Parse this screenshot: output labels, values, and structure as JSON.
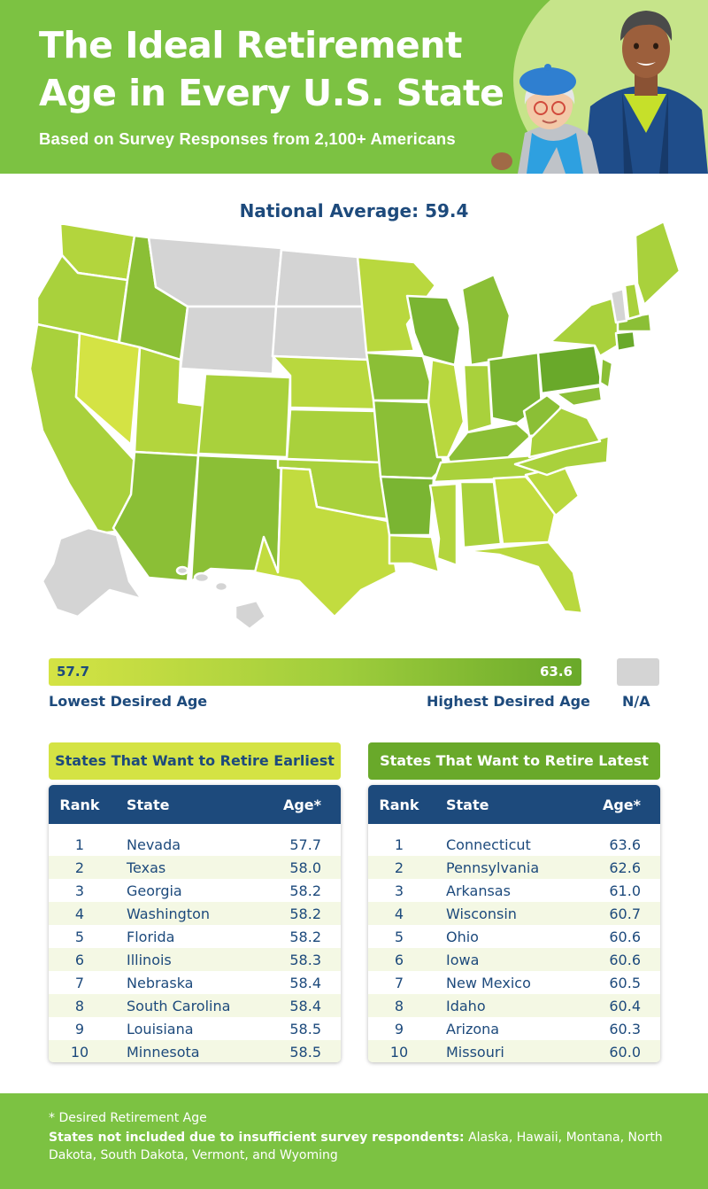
{
  "header": {
    "title": "The Ideal Retirement Age in Every U.S. State",
    "subtitle": "Based on Survey Responses from 2,100+ Americans"
  },
  "map": {
    "national_average": "National Average: 59.4",
    "legend": {
      "min_value": "57.7",
      "max_value": "63.6",
      "min_label": "Lowest Desired Age",
      "max_label": "Highest Desired Age",
      "na_label": "N/A"
    },
    "colors": {
      "low": "#d4e344",
      "high": "#69a92a",
      "na": "#d4d4d4"
    }
  },
  "tables": {
    "earliest": {
      "title": "States That Want to Retire Earliest",
      "headers": {
        "rank": "Rank",
        "state": "State",
        "age": "Age*"
      },
      "rows": [
        {
          "rank": "1",
          "state": "Nevada",
          "age": "57.7"
        },
        {
          "rank": "2",
          "state": "Texas",
          "age": "58.0"
        },
        {
          "rank": "3",
          "state": "Georgia",
          "age": "58.2"
        },
        {
          "rank": "4",
          "state": "Washington",
          "age": "58.2"
        },
        {
          "rank": "5",
          "state": "Florida",
          "age": "58.2"
        },
        {
          "rank": "6",
          "state": "Illinois",
          "age": "58.3"
        },
        {
          "rank": "7",
          "state": "Nebraska",
          "age": "58.4"
        },
        {
          "rank": "8",
          "state": "South Carolina",
          "age": "58.4"
        },
        {
          "rank": "9",
          "state": "Louisiana",
          "age": "58.5"
        },
        {
          "rank": "10",
          "state": "Minnesota",
          "age": "58.5"
        }
      ]
    },
    "latest": {
      "title": "States That Want to Retire Latest",
      "headers": {
        "rank": "Rank",
        "state": "State",
        "age": "Age*"
      },
      "rows": [
        {
          "rank": "1",
          "state": "Connecticut",
          "age": "63.6"
        },
        {
          "rank": "2",
          "state": "Pennsylvania",
          "age": "62.6"
        },
        {
          "rank": "3",
          "state": "Arkansas",
          "age": "61.0"
        },
        {
          "rank": "4",
          "state": "Wisconsin",
          "age": "60.7"
        },
        {
          "rank": "5",
          "state": "Ohio",
          "age": "60.6"
        },
        {
          "rank": "6",
          "state": "Iowa",
          "age": "60.6"
        },
        {
          "rank": "7",
          "state": "New Mexico",
          "age": "60.5"
        },
        {
          "rank": "8",
          "state": "Idaho",
          "age": "60.4"
        },
        {
          "rank": "9",
          "state": "Arizona",
          "age": "60.3"
        },
        {
          "rank": "10",
          "state": "Missouri",
          "age": "60.0"
        }
      ]
    }
  },
  "footer": {
    "note": "* Desired Retirement Age",
    "excluded_label": "States not included due to insufficient survey respondents:",
    "excluded_list": " Alaska, Hawaii, Montana, North Dakota, South Dakota, Vermont, and Wyoming"
  }
}
